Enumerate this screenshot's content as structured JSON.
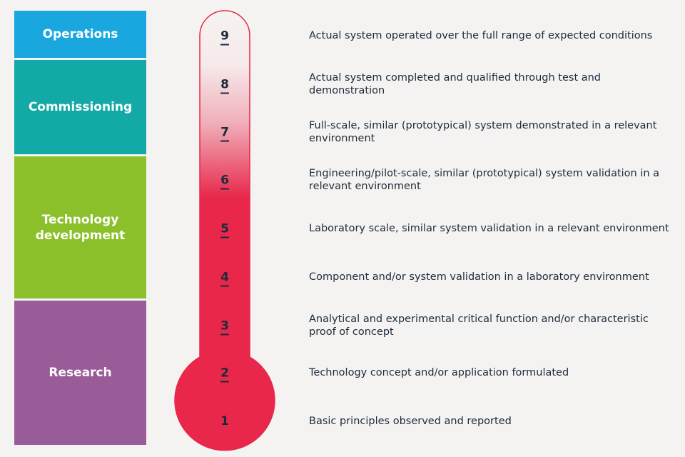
{
  "phases": [
    {
      "label": "Operations",
      "color": "#1aa7df"
    },
    {
      "label": "Commissioning",
      "color": "#13a9a6"
    },
    {
      "label": "Technology development",
      "color": "#8cc02a"
    },
    {
      "label": "Research",
      "color": "#995c99"
    }
  ],
  "levels": [
    {
      "number": 9,
      "description": "Actual system operated over the full range of expected conditions"
    },
    {
      "number": 8,
      "description": "Actual system completed and qualified through test and demonstration"
    },
    {
      "number": 7,
      "description": "Full-scale, similar (prototypical) system demonstrated in a relevant environment"
    },
    {
      "number": 6,
      "description": "Engineering/pilot-scale, similar (prototypical) system validation in a relevant environment"
    },
    {
      "number": 5,
      "description": "Laboratory scale, similar system validation in a relevant environment"
    },
    {
      "number": 4,
      "description": "Component and/or system validation in a laboratory environment"
    },
    {
      "number": 3,
      "description": "Analytical and experimental critical function and/or characteristic proof of concept"
    },
    {
      "number": 2,
      "description": "Technology concept and/or application formulated"
    },
    {
      "number": 1,
      "description": "Basic principles observed and reported"
    }
  ]
}
